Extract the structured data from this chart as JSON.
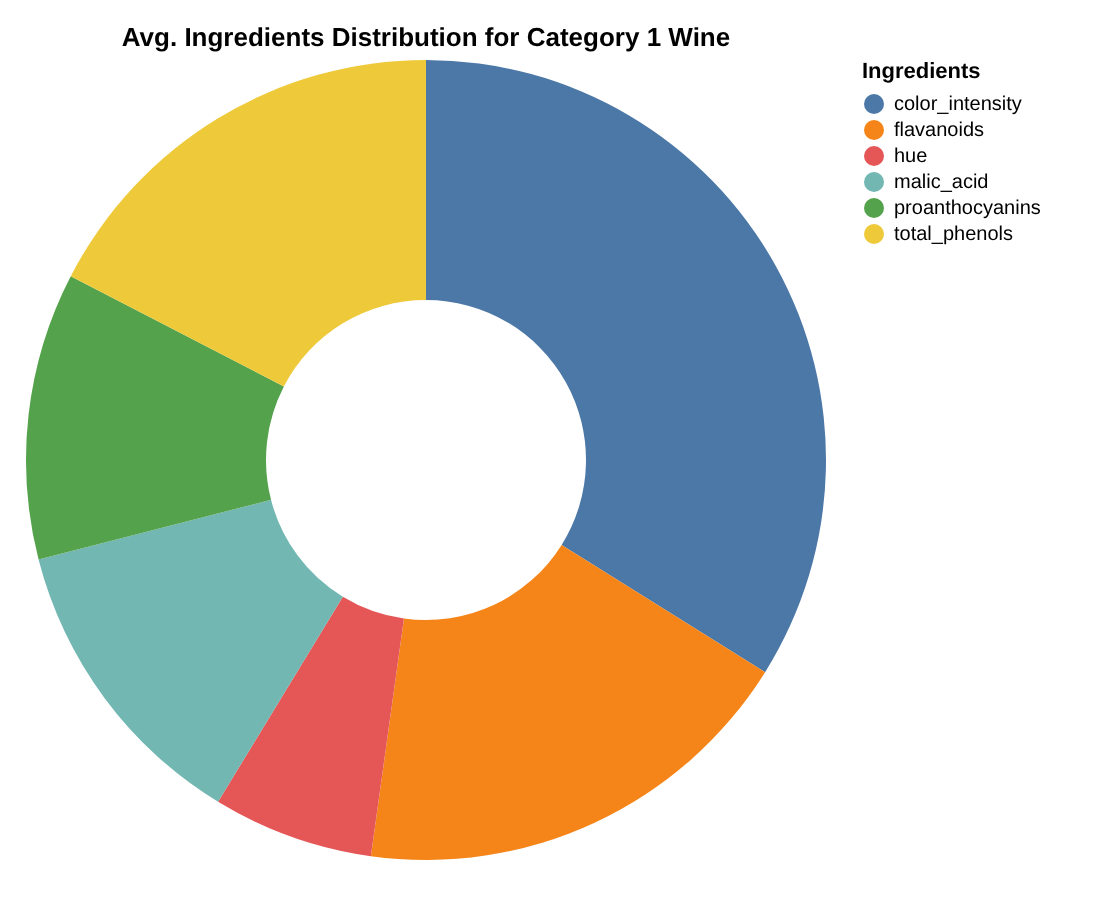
{
  "chart_data": {
    "type": "donut",
    "title": "Avg. Ingredients Distribution for Category 1 Wine",
    "legend_title": "Ingredients",
    "categories": [
      "color_intensity",
      "flavanoids",
      "hue",
      "malic_acid",
      "proanthocyanins",
      "total_phenols"
    ],
    "values": [
      33.9,
      18.3,
      6.5,
      12.3,
      11.6,
      17.4
    ],
    "colors": [
      "#4c78a8",
      "#f58518",
      "#e45756",
      "#72b7b2",
      "#54a24b",
      "#eeca3b"
    ],
    "legend": "right"
  }
}
